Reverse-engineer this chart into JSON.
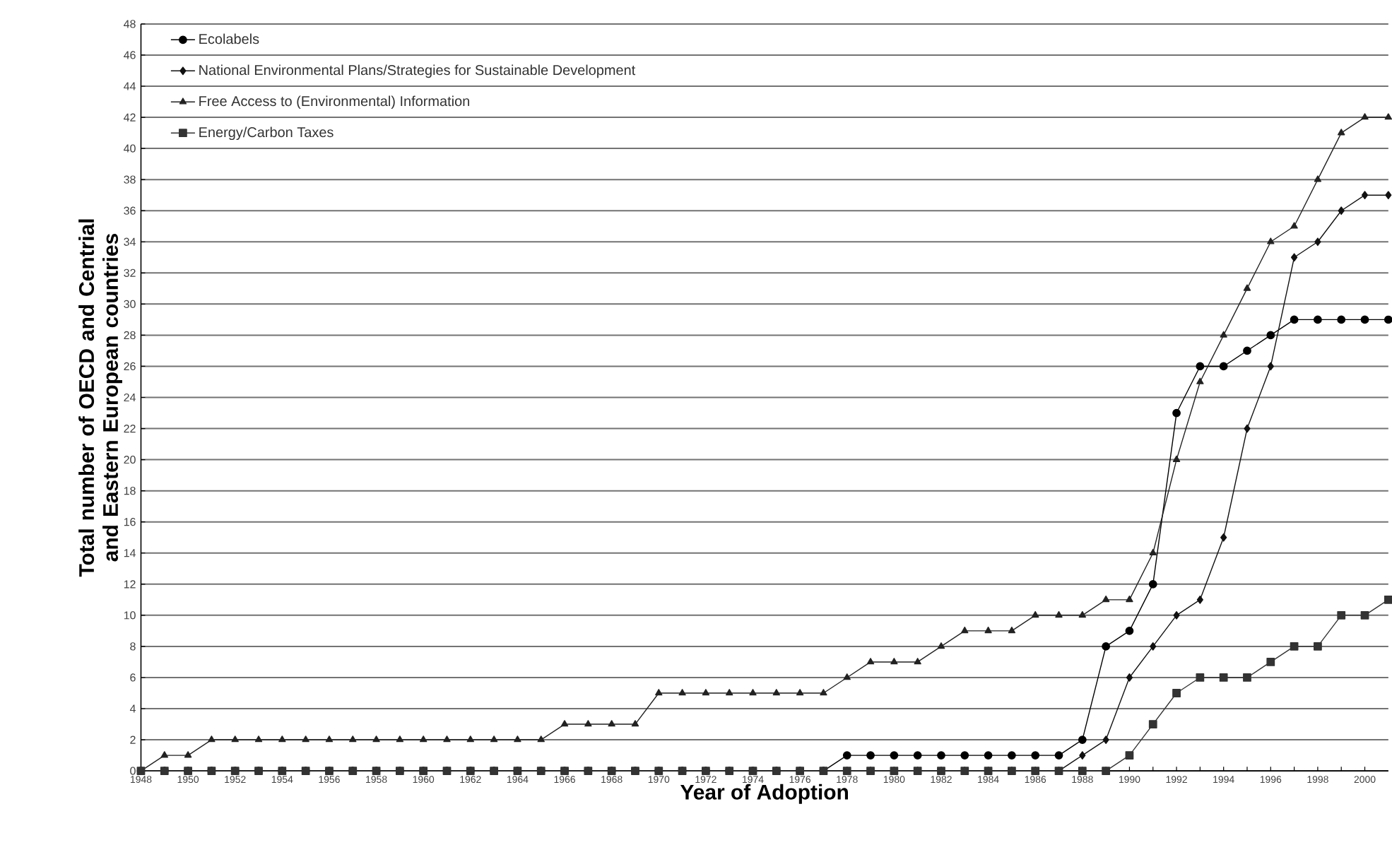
{
  "chart_data": {
    "type": "line",
    "xlabel": "Year of Adoption",
    "ylabel": "Total number of OECD and Centrial and Eastern European countries",
    "x": [
      1948,
      1949,
      1950,
      1951,
      1952,
      1953,
      1954,
      1955,
      1956,
      1957,
      1958,
      1959,
      1960,
      1961,
      1962,
      1963,
      1964,
      1965,
      1966,
      1967,
      1968,
      1969,
      1970,
      1971,
      1972,
      1973,
      1974,
      1975,
      1976,
      1977,
      1978,
      1979,
      1980,
      1981,
      1982,
      1983,
      1984,
      1985,
      1986,
      1987,
      1988,
      1989,
      1990,
      1991,
      1992,
      1993,
      1994,
      1995,
      1996,
      1997,
      1998,
      1999,
      2000,
      2001
    ],
    "series": [
      {
        "name": "Ecolabels",
        "color": "#000000",
        "marker": "circle",
        "values": [
          0,
          0,
          0,
          0,
          0,
          0,
          0,
          0,
          0,
          0,
          0,
          0,
          0,
          0,
          0,
          0,
          0,
          0,
          0,
          0,
          0,
          0,
          0,
          0,
          0,
          0,
          0,
          0,
          0,
          0,
          1,
          1,
          1,
          1,
          1,
          1,
          1,
          1,
          1,
          1,
          2,
          8,
          9,
          12,
          23,
          26,
          26,
          27,
          28,
          29,
          29,
          29,
          29,
          29
        ]
      },
      {
        "name": "National Environmental Plans/Strategies for Sustainable Development",
        "color": "#111111",
        "marker": "diamond",
        "values": [
          0,
          0,
          0,
          0,
          0,
          0,
          0,
          0,
          0,
          0,
          0,
          0,
          0,
          0,
          0,
          0,
          0,
          0,
          0,
          0,
          0,
          0,
          0,
          0,
          0,
          0,
          0,
          0,
          0,
          0,
          0,
          0,
          0,
          0,
          0,
          0,
          0,
          0,
          0,
          0,
          1,
          2,
          6,
          8,
          10,
          11,
          15,
          22,
          26,
          33,
          34,
          36,
          37,
          37
        ]
      },
      {
        "name": "Free Access to (Environmental) Information",
        "color": "#222222",
        "marker": "triangle",
        "values": [
          0,
          1,
          1,
          2,
          2,
          2,
          2,
          2,
          2,
          2,
          2,
          2,
          2,
          2,
          2,
          2,
          2,
          2,
          3,
          3,
          3,
          3,
          5,
          5,
          5,
          5,
          5,
          5,
          5,
          5,
          6,
          7,
          7,
          7,
          8,
          9,
          9,
          9,
          10,
          10,
          10,
          11,
          11,
          14,
          20,
          25,
          28,
          31,
          34,
          35,
          38,
          41,
          42,
          42
        ]
      },
      {
        "name": "Energy/Carbon Taxes",
        "color": "#333333",
        "marker": "square",
        "values": [
          0,
          0,
          0,
          0,
          0,
          0,
          0,
          0,
          0,
          0,
          0,
          0,
          0,
          0,
          0,
          0,
          0,
          0,
          0,
          0,
          0,
          0,
          0,
          0,
          0,
          0,
          0,
          0,
          0,
          0,
          0,
          0,
          0,
          0,
          0,
          0,
          0,
          0,
          0,
          0,
          0,
          0,
          1,
          3,
          5,
          6,
          6,
          6,
          7,
          8,
          8,
          10,
          10,
          11
        ]
      }
    ],
    "xlim": [
      1948,
      2001
    ],
    "xticks": [
      1948,
      1950,
      1952,
      1954,
      1956,
      1958,
      1960,
      1962,
      1964,
      1966,
      1968,
      1970,
      1972,
      1974,
      1976,
      1978,
      1980,
      1982,
      1984,
      1986,
      1988,
      1990,
      1992,
      1994,
      1996,
      1998,
      2000
    ],
    "ylim": [
      0,
      48
    ],
    "yticks": [
      0,
      2,
      4,
      6,
      8,
      10,
      12,
      14,
      16,
      18,
      20,
      22,
      24,
      26,
      28,
      30,
      32,
      34,
      36,
      38,
      40,
      42,
      44,
      46,
      48
    ],
    "grid": "y",
    "legend": "top left",
    "line_style": "solid"
  }
}
